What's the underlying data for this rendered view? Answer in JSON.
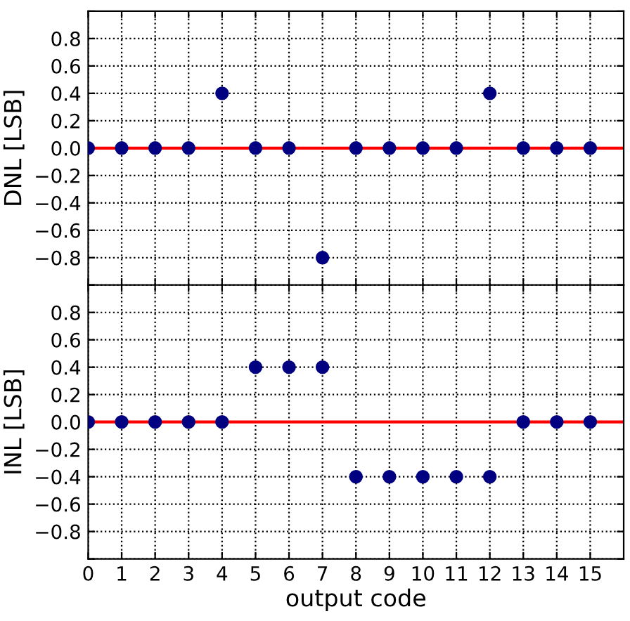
{
  "chart_data": [
    {
      "type": "scatter",
      "ylabel": "DNL [LSB]",
      "x": [
        0,
        1,
        2,
        3,
        4,
        5,
        6,
        7,
        8,
        9,
        10,
        11,
        12,
        13,
        14,
        15
      ],
      "series": [
        {
          "color": "#000080",
          "values": [
            0,
            0,
            0,
            0,
            0.4,
            0,
            0,
            -0.8,
            0,
            0,
            0,
            0,
            0.4,
            0,
            0,
            0
          ]
        }
      ],
      "marker": "circle",
      "xlim": [
        0,
        16
      ],
      "xticks": [
        0,
        1,
        2,
        3,
        4,
        5,
        6,
        7,
        8,
        9,
        10,
        11,
        12,
        13,
        14,
        15
      ],
      "ylim": [
        -1,
        1
      ],
      "yticks": [
        {
          "value": -1,
          "label": null
        },
        {
          "value": -0.8,
          "label": "−0.8"
        },
        {
          "value": -0.6,
          "label": "−0.6"
        },
        {
          "value": -0.4,
          "label": "−0.4"
        },
        {
          "value": -0.2,
          "label": "−0.2"
        },
        {
          "value": 0,
          "label": "0.0"
        },
        {
          "value": 0.2,
          "label": "0.2"
        },
        {
          "value": 0.4,
          "label": "0.4"
        },
        {
          "value": 0.6,
          "label": "0.6"
        },
        {
          "value": 0.8,
          "label": "0.8"
        },
        {
          "value": 1,
          "label": null
        }
      ],
      "ref_lines": [
        {
          "axis": "y",
          "value": 0,
          "color": "#ff0000"
        }
      ],
      "grid": true,
      "tick_labels": "y"
    },
    {
      "type": "scatter",
      "xlabel": "output code",
      "ylabel": "INL [LSB]",
      "x": [
        0,
        1,
        2,
        3,
        4,
        5,
        6,
        7,
        8,
        9,
        10,
        11,
        12,
        13,
        14,
        15
      ],
      "series": [
        {
          "color": "#000080",
          "values": [
            0,
            0,
            0,
            0,
            0,
            0.4,
            0.4,
            0.4,
            -0.4,
            -0.4,
            -0.4,
            -0.4,
            -0.4,
            0,
            0,
            0
          ]
        }
      ],
      "marker": "circle",
      "xlim": [
        0,
        16
      ],
      "xticks": [
        0,
        1,
        2,
        3,
        4,
        5,
        6,
        7,
        8,
        9,
        10,
        11,
        12,
        13,
        14,
        15
      ],
      "ylim": [
        -1,
        1
      ],
      "yticks": [
        {
          "value": -1,
          "label": null
        },
        {
          "value": -0.8,
          "label": "−0.8"
        },
        {
          "value": -0.6,
          "label": "−0.6"
        },
        {
          "value": -0.4,
          "label": "−0.4"
        },
        {
          "value": -0.2,
          "label": "−0.2"
        },
        {
          "value": 0,
          "label": "0.0"
        },
        {
          "value": 0.2,
          "label": "0.2"
        },
        {
          "value": 0.4,
          "label": "0.4"
        },
        {
          "value": 0.6,
          "label": "0.6"
        },
        {
          "value": 0.8,
          "label": "0.8"
        },
        {
          "value": 1,
          "label": null
        }
      ],
      "ref_lines": [
        {
          "axis": "y",
          "value": 0,
          "color": "#ff0000"
        }
      ],
      "grid": true
    }
  ]
}
